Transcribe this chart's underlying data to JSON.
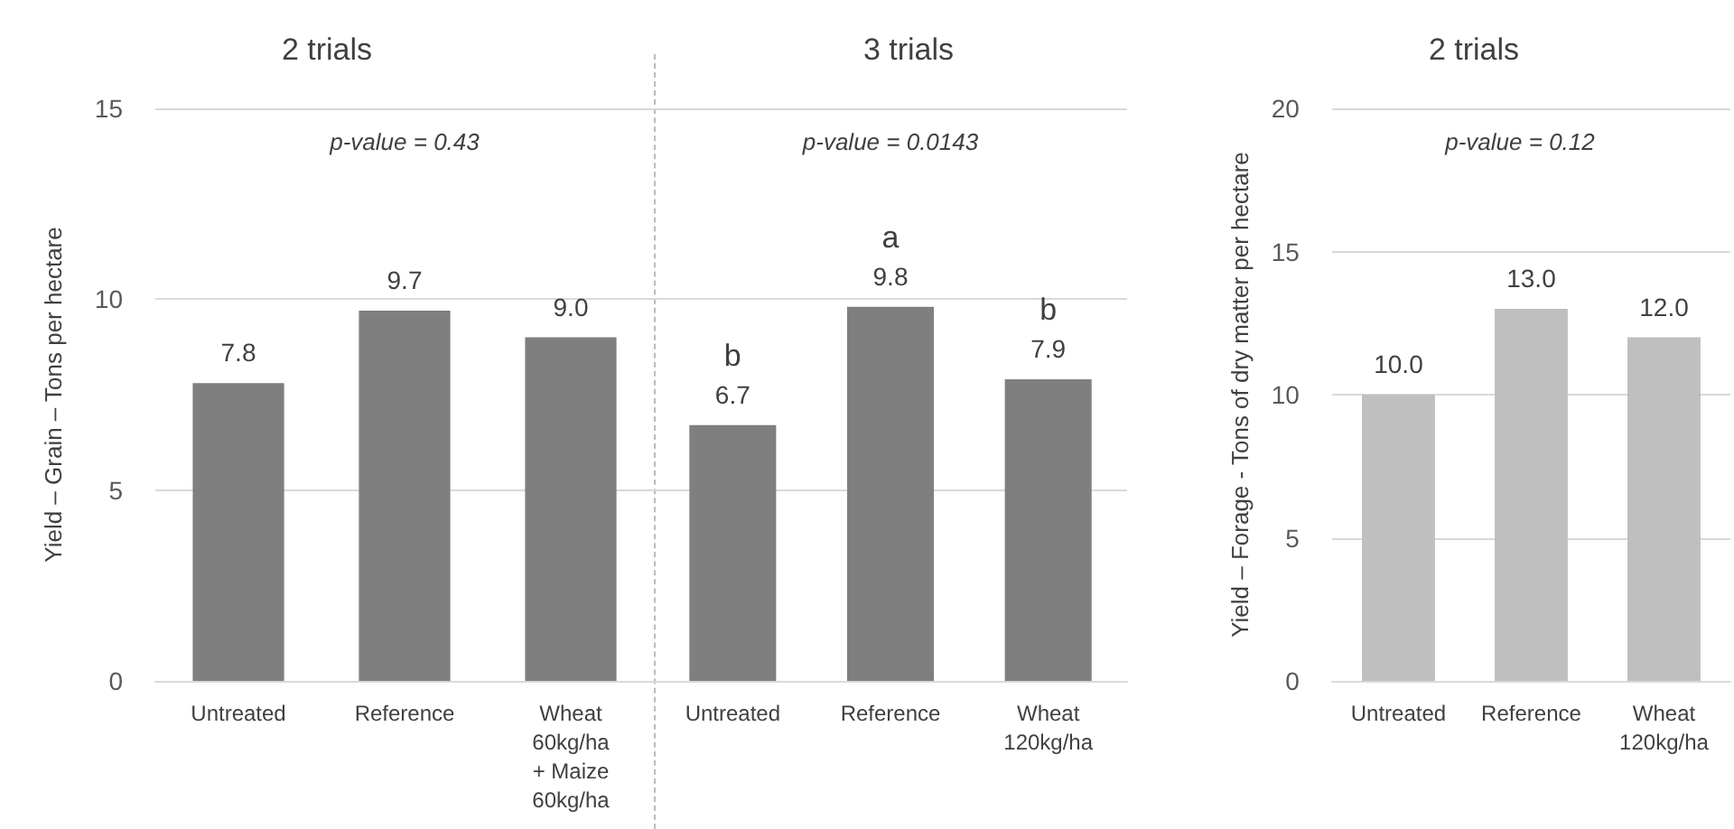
{
  "chart_data": [
    {
      "type": "bar",
      "title": "2 trials",
      "ylabel": "Yield – Grain – Tons per hectare",
      "categories": [
        "Untreated",
        "Reference",
        "Wheat 60kg/ha + Maize 60kg/ha"
      ],
      "values": [
        7.8,
        9.7,
        9.0
      ],
      "color": "#7f7f7f",
      "ylim": [
        0,
        15
      ],
      "yticks": [
        0,
        5,
        10,
        15
      ],
      "grid": "y",
      "data_labels": true,
      "value_labels": [
        "7.8",
        "9.7",
        "9.0"
      ],
      "annotations": [
        "p-value = 0.43"
      ]
    },
    {
      "type": "bar",
      "title": "3 trials",
      "categories": [
        "Untreated",
        "Reference",
        "Wheat 120kg/ha"
      ],
      "values": [
        6.7,
        9.8,
        7.9
      ],
      "color": "#7f7f7f",
      "ylim": [
        0,
        15
      ],
      "yticks": [
        0,
        5,
        10,
        15
      ],
      "grid": "y",
      "tick_labels": "x",
      "data_labels": true,
      "value_labels": [
        "6.7",
        "9.8",
        "7.9"
      ],
      "annotations": [
        "p-value = 0.0143",
        {
          "text": "b",
          "x": "Untreated",
          "y": 6.7
        },
        {
          "text": "a",
          "x": "Reference",
          "y": 9.8
        },
        {
          "text": "b",
          "x": "Wheat 120kg/ha",
          "y": 7.9
        }
      ]
    },
    {
      "type": "bar",
      "title": "2 trials",
      "ylabel": "Yield – Forage - Tons of dry matter per hectare",
      "categories": [
        "Untreated",
        "Reference",
        "Wheat 120kg/ha"
      ],
      "values": [
        10.0,
        13.0,
        12.0
      ],
      "color": "#bfbfbf",
      "ylim": [
        0,
        20
      ],
      "yticks": [
        0,
        5,
        10,
        15,
        20
      ],
      "grid": "y",
      "data_labels": true,
      "value_labels": [
        "10.0",
        "13.0",
        "12.0"
      ],
      "annotations": [
        "p-value = 0.12"
      ]
    }
  ]
}
